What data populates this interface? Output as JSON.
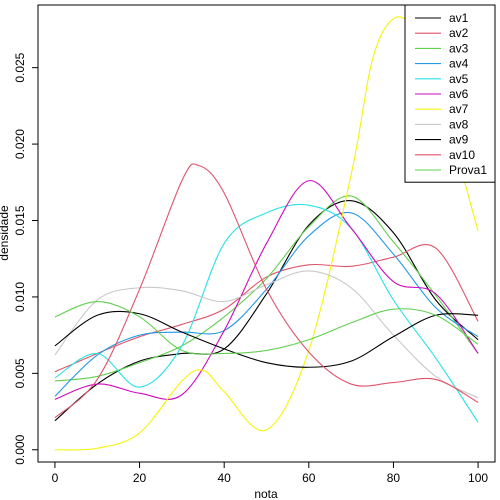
{
  "chart_data": {
    "type": "line",
    "title": "",
    "xlabel": "nota",
    "ylabel": "densidade",
    "xlim": [
      -4,
      104
    ],
    "ylim": [
      -0.0008,
      0.0291
    ],
    "x_ticks": [
      0,
      20,
      40,
      60,
      80,
      100
    ],
    "y_ticks": [
      0.0,
      0.005,
      0.01,
      0.015,
      0.02,
      0.025
    ],
    "y_tick_labels": [
      "0.000",
      "0.005",
      "0.010",
      "0.015",
      "0.020",
      "0.025"
    ],
    "grid": false,
    "legend_position": "top-right",
    "series": [
      {
        "name": "av1",
        "color": "#000000",
        "x": [
          0,
          10,
          20,
          30,
          40,
          50,
          60,
          70,
          80,
          90,
          100
        ],
        "y": [
          0.0019,
          0.0043,
          0.0058,
          0.0063,
          0.0066,
          0.0102,
          0.0147,
          0.0163,
          0.0142,
          0.0098,
          0.0072
        ]
      },
      {
        "name": "av2",
        "color": "#df536b",
        "x": [
          0,
          10,
          20,
          30,
          40,
          50,
          60,
          70,
          80,
          90,
          100
        ],
        "y": [
          0.0051,
          0.0063,
          0.0074,
          0.0082,
          0.0092,
          0.0113,
          0.0121,
          0.012,
          0.0126,
          0.0132,
          0.0084
        ]
      },
      {
        "name": "av3",
        "color": "#61d04f",
        "x": [
          0,
          10,
          20,
          30,
          40,
          50,
          60,
          70,
          80,
          90,
          100
        ],
        "y": [
          0.0045,
          0.0048,
          0.0057,
          0.0068,
          0.0087,
          0.0112,
          0.0146,
          0.0166,
          0.0136,
          0.0101,
          0.0063
        ]
      },
      {
        "name": "av4",
        "color": "#2297e6",
        "x": [
          0,
          10,
          20,
          30,
          40,
          50,
          60,
          70,
          80,
          90,
          100
        ],
        "y": [
          0.0035,
          0.0062,
          0.0075,
          0.0077,
          0.0078,
          0.0105,
          0.014,
          0.0155,
          0.0128,
          0.0093,
          0.0074
        ]
      },
      {
        "name": "av5",
        "color": "#28e2e5",
        "x": [
          0,
          10,
          20,
          30,
          40,
          50,
          60,
          70,
          80,
          90,
          100
        ],
        "y": [
          0.0047,
          0.0063,
          0.0041,
          0.0068,
          0.0135,
          0.0155,
          0.016,
          0.0145,
          0.0098,
          0.006,
          0.0018
        ]
      },
      {
        "name": "av6",
        "color": "#cd0bbc",
        "x": [
          0,
          10,
          20,
          30,
          40,
          50,
          60,
          70,
          80,
          90,
          100
        ],
        "y": [
          0.0033,
          0.0043,
          0.0037,
          0.0036,
          0.0078,
          0.0135,
          0.0176,
          0.0145,
          0.011,
          0.0102,
          0.0063
        ]
      },
      {
        "name": "av7",
        "color": "#f5f50a",
        "x": [
          0,
          10,
          20,
          30,
          35,
          40,
          50,
          60,
          70,
          75,
          80,
          85,
          90,
          100
        ],
        "y": [
          0.0,
          0.0001,
          0.0011,
          0.0045,
          0.0052,
          0.0038,
          0.0013,
          0.0065,
          0.018,
          0.0255,
          0.0282,
          0.0275,
          0.0242,
          0.0143
        ]
      },
      {
        "name": "av8",
        "color": "#c9c9c9",
        "x": [
          0,
          10,
          20,
          30,
          40,
          50,
          60,
          70,
          80,
          90,
          100
        ],
        "y": [
          0.0062,
          0.0098,
          0.0106,
          0.0104,
          0.0097,
          0.0108,
          0.0117,
          0.0106,
          0.0075,
          0.0048,
          0.0034
        ]
      },
      {
        "name": "av9",
        "color": "#000000",
        "x": [
          0,
          10,
          20,
          30,
          40,
          50,
          60,
          70,
          80,
          90,
          100
        ],
        "y": [
          0.0068,
          0.0088,
          0.0089,
          0.0077,
          0.0066,
          0.0057,
          0.0054,
          0.0058,
          0.0074,
          0.0088,
          0.0088
        ]
      },
      {
        "name": "av10",
        "color": "#df536b",
        "x": [
          0,
          10,
          20,
          30,
          34,
          40,
          50,
          60,
          70,
          80,
          90,
          100
        ],
        "y": [
          0.0021,
          0.0046,
          0.0105,
          0.0176,
          0.0186,
          0.0168,
          0.0105,
          0.0064,
          0.0043,
          0.0044,
          0.0046,
          0.0031
        ]
      },
      {
        "name": "Prova1",
        "color": "#61d04f",
        "x": [
          0,
          10,
          20,
          30,
          40,
          50,
          60,
          70,
          80,
          90,
          100
        ],
        "y": [
          0.0087,
          0.0097,
          0.0087,
          0.0065,
          0.0063,
          0.0065,
          0.0072,
          0.0083,
          0.0092,
          0.0088,
          0.0069
        ]
      }
    ]
  }
}
